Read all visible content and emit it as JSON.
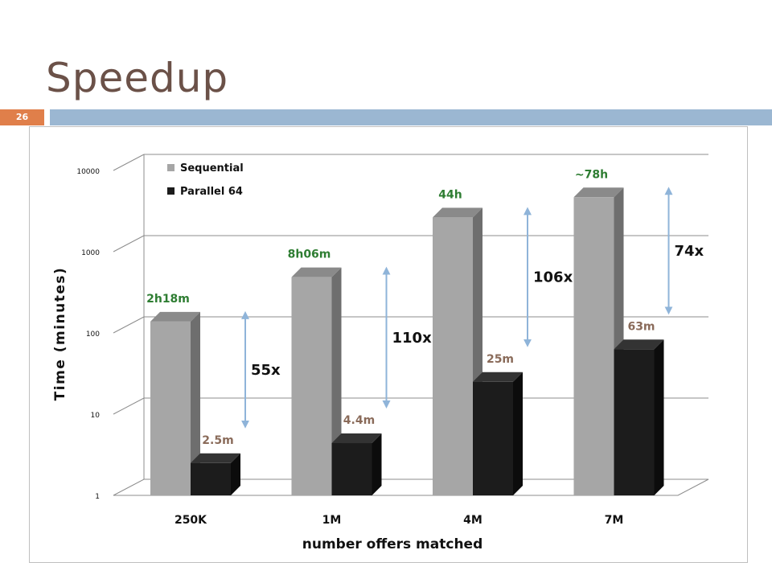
{
  "slide": {
    "title": "Speedup",
    "number": "26"
  },
  "chart_data": {
    "type": "bar",
    "subtype": "3d-clustered-column",
    "categories": [
      "250K",
      "1M",
      "4M",
      "7M"
    ],
    "series": [
      {
        "name": "Sequential",
        "values": [
          138,
          486,
          2640,
          4680
        ],
        "labels": [
          "2h18m",
          "8h06m",
          "44h",
          "~78h"
        ],
        "color": "#a6a6a6"
      },
      {
        "name": "Parallel 64",
        "values": [
          2.5,
          4.4,
          25,
          63
        ],
        "labels": [
          "2.5m",
          "4.4m",
          "25m",
          "63m"
        ],
        "color": "#1c1c1c"
      }
    ],
    "speedups": [
      "55x",
      "110x",
      "106x",
      "74x"
    ],
    "xlabel": "number offers matched",
    "ylabel": "Time (minutes)",
    "ylim": [
      1,
      10000
    ],
    "yscale": "log",
    "yticks": [
      "1",
      "10",
      "100",
      "1000",
      "10000"
    ],
    "grid": true,
    "legend_position": "top-left",
    "colors": {
      "seq_label": "#2e7d32",
      "par_label": "#8a6b5a",
      "arrow": "#8fb4d9"
    }
  }
}
